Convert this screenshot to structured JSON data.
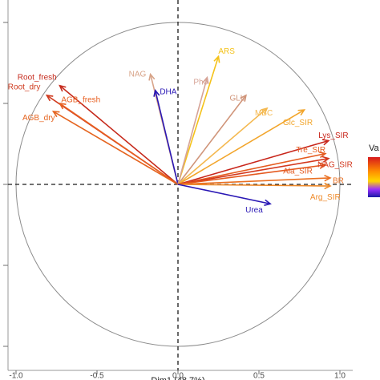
{
  "chart_data": {
    "type": "scatter",
    "subtype": "pca-variable-correlation-circle",
    "xlabel": "Dim1 (48.7%)",
    "xlim": [
      -1.0,
      1.0
    ],
    "ylim": [
      -1.0,
      1.0
    ],
    "x_ticks": [
      "-1.0",
      "-0.5",
      "0.0",
      "0.5",
      "1.0"
    ],
    "grid": false,
    "reference_lines": "dashed at x=0 and y=0",
    "legend": {
      "title": "Va",
      "placement": "right",
      "colors": [
        "#d7191c",
        "#ff8c00",
        "#ffd700",
        "#6a0dad",
        "#1a1aa6"
      ]
    },
    "variables": [
      {
        "name": "Root_fresh",
        "x": -0.73,
        "y": 0.61,
        "color": "#c62a1c",
        "label_dx": -0.14,
        "label_dy": 0.05
      },
      {
        "name": "Root_dry",
        "x": -0.81,
        "y": 0.55,
        "color": "#cf3b1f",
        "label_dx": -0.14,
        "label_dy": 0.05
      },
      {
        "name": "AGB_fresh",
        "x": -0.73,
        "y": 0.5,
        "color": "#e85f20",
        "label_dx": 0.13,
        "label_dy": 0.02
      },
      {
        "name": "AGB_dry",
        "x": -0.77,
        "y": 0.45,
        "color": "#e5641f",
        "label_dx": -0.09,
        "label_dy": -0.04
      },
      {
        "name": "NAG",
        "x": -0.17,
        "y": 0.68,
        "color": "#d8a489",
        "label_dx": -0.08,
        "label_dy": 0.0
      },
      {
        "name": "DHA",
        "x": -0.14,
        "y": 0.58,
        "color": "#2a18b5",
        "label_dx": 0.08,
        "label_dy": -0.01
      },
      {
        "name": "ARS",
        "x": 0.25,
        "y": 0.79,
        "color": "#f4c21a",
        "label_dx": 0.05,
        "label_dy": 0.03
      },
      {
        "name": "Pho",
        "x": 0.18,
        "y": 0.66,
        "color": "#d6a396",
        "label_dx": -0.04,
        "label_dy": -0.03
      },
      {
        "name": "GLU",
        "x": 0.42,
        "y": 0.55,
        "color": "#d0957a",
        "label_dx": -0.05,
        "label_dy": -0.02
      },
      {
        "name": "MBC",
        "x": 0.55,
        "y": 0.47,
        "color": "#f4b84f",
        "label_dx": -0.02,
        "label_dy": -0.03
      },
      {
        "name": "Glc_SIR",
        "x": 0.78,
        "y": 0.46,
        "color": "#f2a52b",
        "label_dx": -0.04,
        "label_dy": -0.08
      },
      {
        "name": "Lys_SIR",
        "x": 0.93,
        "y": 0.27,
        "color": "#c8261b",
        "label_dx": 0.03,
        "label_dy": 0.03
      },
      {
        "name": "Tre_SIR",
        "x": 0.91,
        "y": 0.19,
        "color": "#e55c20",
        "label_dx": -0.09,
        "label_dy": 0.02
      },
      {
        "name": "NAG_SIR",
        "x": 0.93,
        "y": 0.16,
        "color": "#d3381e",
        "label_dx": 0.04,
        "label_dy": -0.04
      },
      {
        "name": "Ala_SIR",
        "x": 0.91,
        "y": 0.12,
        "color": "#e4591f",
        "label_dx": -0.17,
        "label_dy": -0.04
      },
      {
        "name": "BR",
        "x": 0.94,
        "y": 0.04,
        "color": "#ea7022",
        "label_dx": 0.05,
        "label_dy": -0.02
      },
      {
        "name": "Arg_SIR",
        "x": 0.94,
        "y": -0.01,
        "color": "#ef8a2a",
        "label_dx": -0.03,
        "label_dy": -0.07
      },
      {
        "name": "Urea",
        "x": 0.57,
        "y": -0.12,
        "color": "#2a18b5",
        "label_dx": -0.1,
        "label_dy": -0.04
      }
    ]
  }
}
